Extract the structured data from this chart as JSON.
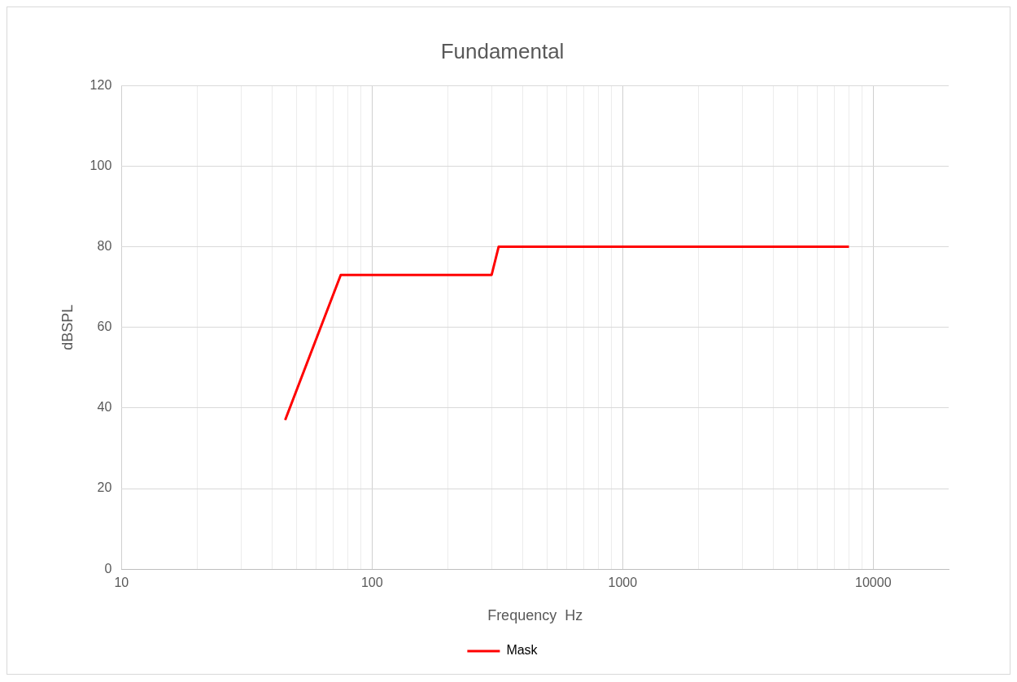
{
  "chart_data": {
    "type": "line",
    "title": "Fundamental",
    "xlabel": "Frequency  Hz",
    "ylabel": "dBSPL",
    "log": "x",
    "x": [
      45,
      75,
      300,
      320,
      8000
    ],
    "series": [
      {
        "name": "Mask",
        "color": "#ff0000",
        "values": [
          37,
          73,
          73,
          80,
          80
        ]
      }
    ],
    "xlim": [
      10,
      20000
    ],
    "xticks": [
      10,
      {
        "value": 20,
        "label": null
      },
      {
        "value": 30,
        "label": null
      },
      {
        "value": 40,
        "label": null
      },
      {
        "value": 50,
        "label": null
      },
      {
        "value": 60,
        "label": null
      },
      {
        "value": 70,
        "label": null
      },
      {
        "value": 80,
        "label": null
      },
      {
        "value": 90,
        "label": null
      },
      100,
      {
        "value": 200,
        "label": null
      },
      {
        "value": 300,
        "label": null
      },
      {
        "value": 400,
        "label": null
      },
      {
        "value": 500,
        "label": null
      },
      {
        "value": 600,
        "label": null
      },
      {
        "value": 700,
        "label": null
      },
      {
        "value": 800,
        "label": null
      },
      {
        "value": 900,
        "label": null
      },
      1000,
      {
        "value": 2000,
        "label": null
      },
      {
        "value": 3000,
        "label": null
      },
      {
        "value": 4000,
        "label": null
      },
      {
        "value": 5000,
        "label": null
      },
      {
        "value": 6000,
        "label": null
      },
      {
        "value": 7000,
        "label": null
      },
      {
        "value": 8000,
        "label": null
      },
      {
        "value": 9000,
        "label": null
      },
      10000
    ],
    "ylim": [
      0,
      120
    ],
    "yticks": [
      0,
      20,
      40,
      60,
      80,
      100,
      120
    ],
    "grid": true,
    "legend": "bottom",
    "marker": "none",
    "line_style": "solid"
  }
}
